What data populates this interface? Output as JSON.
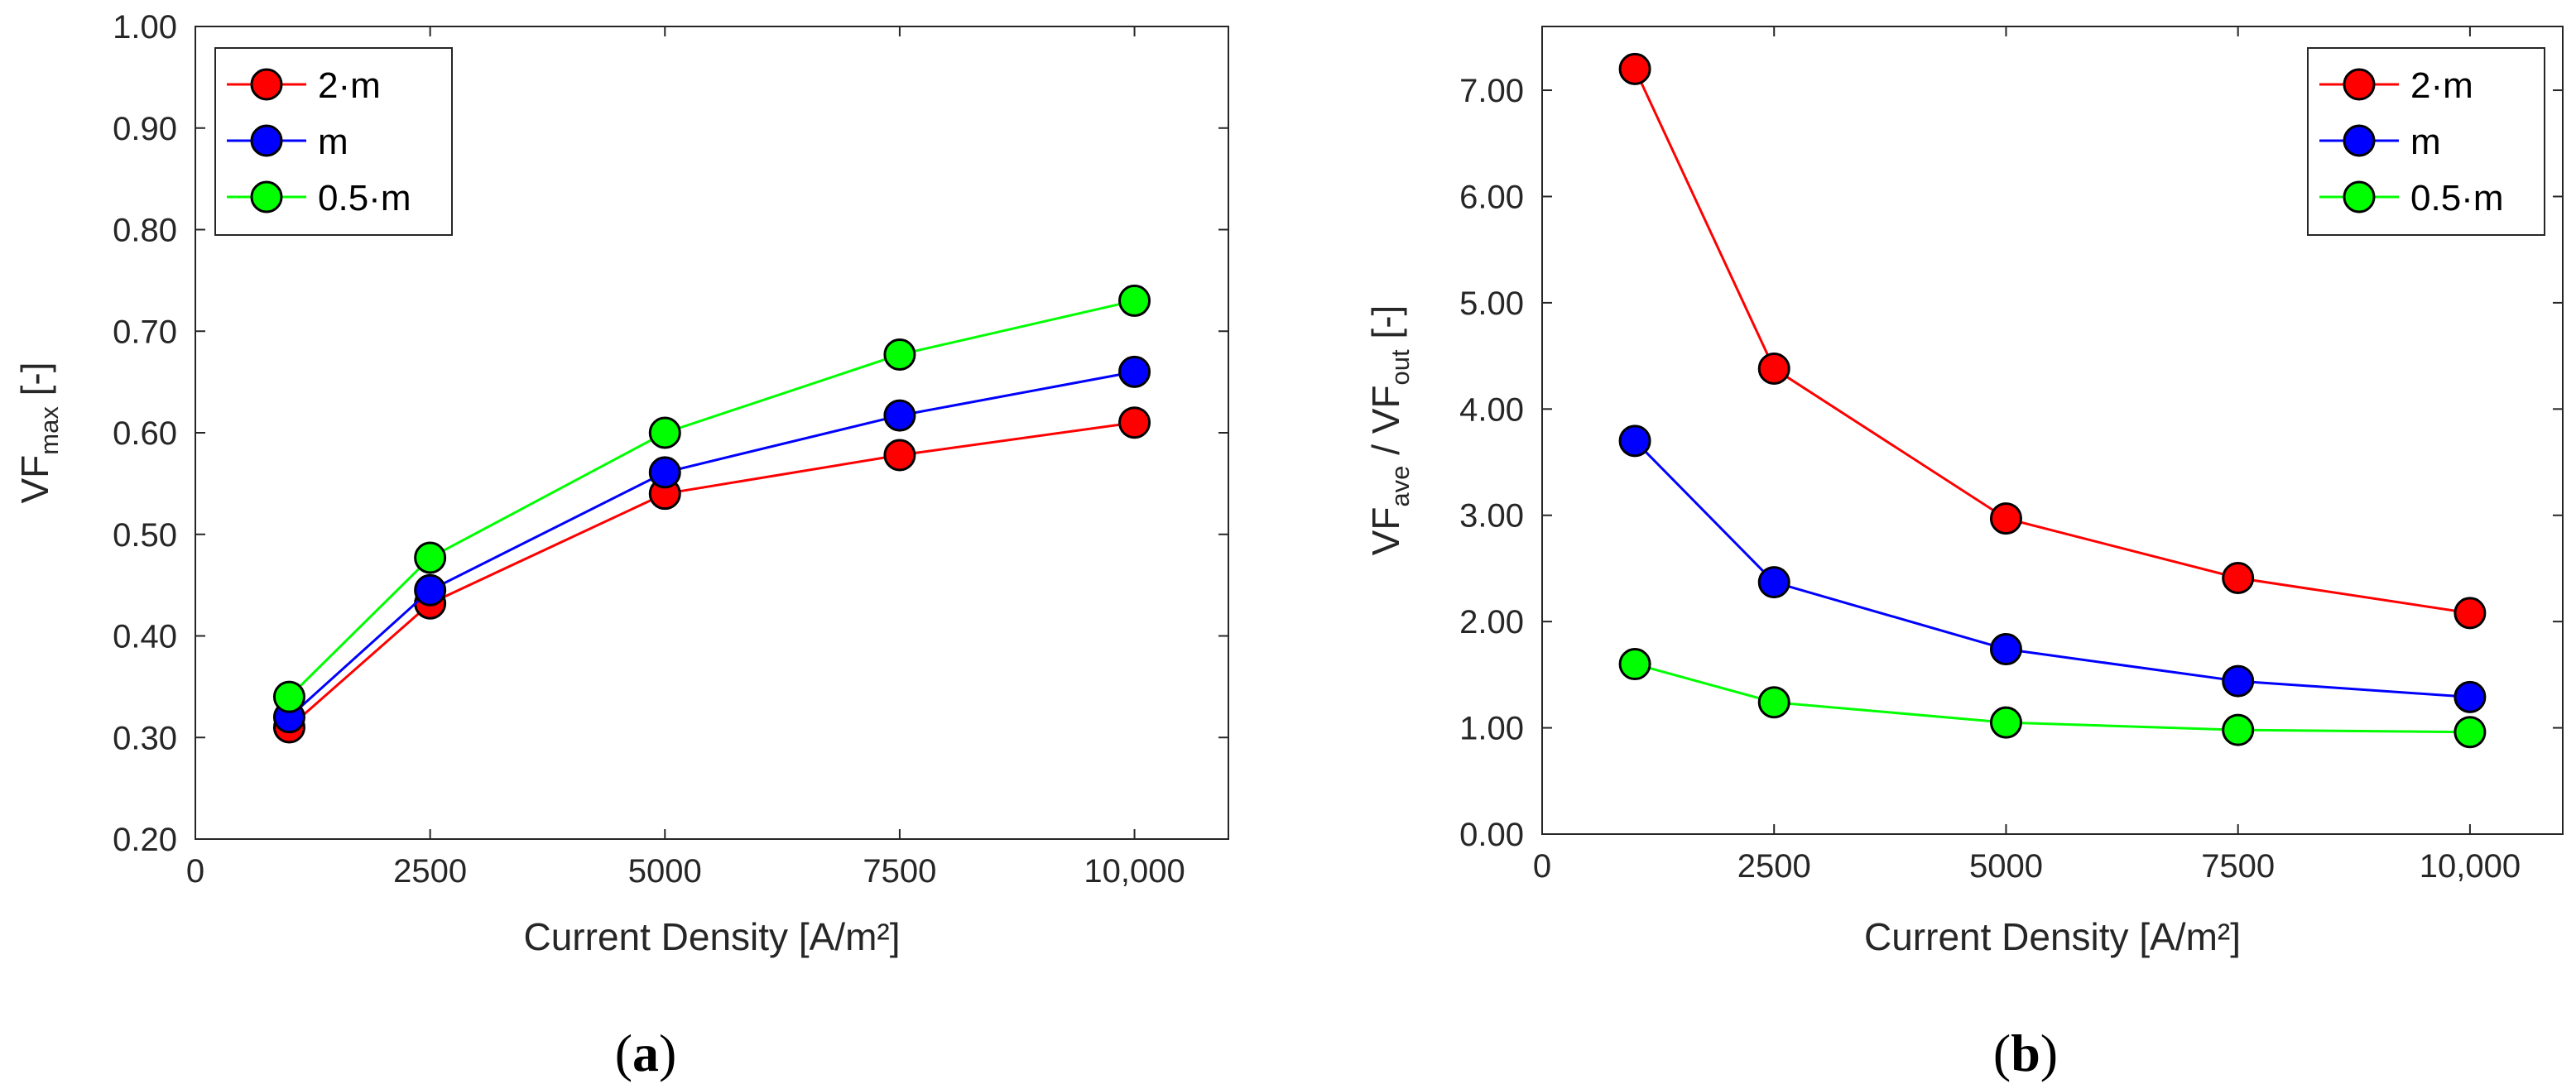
{
  "chart_data": [
    {
      "type": "line",
      "panel": "(a)",
      "caption_open": "(",
      "caption_letter": "a",
      "caption_close": ")",
      "x": [
        1000,
        2500,
        5000,
        7500,
        10000
      ],
      "xlim": [
        0,
        11000
      ],
      "xticks": [
        0,
        2500,
        5000,
        7500,
        10000
      ],
      "xtick_labels": [
        "0",
        "2500",
        "5000",
        "7500",
        "10,000"
      ],
      "xlabel": "Current Density [A/m²]",
      "ylabel_main": "VF",
      "ylabel_sub": "max",
      "ylabel_suffix": " [-]",
      "ylim": [
        0.2,
        1.0
      ],
      "yticks": [
        0.2,
        0.3,
        0.4,
        0.5,
        0.6,
        0.7,
        0.8,
        0.9,
        1.0
      ],
      "ytick_labels": [
        "0.20",
        "0.30",
        "0.40",
        "0.50",
        "0.60",
        "0.70",
        "0.80",
        "0.90",
        "1.00"
      ],
      "legend_position": "top-left",
      "series": [
        {
          "name": "2·m",
          "color": "#ff0000",
          "values": [
            0.31,
            0.432,
            0.54,
            0.578,
            0.61
          ]
        },
        {
          "name": "m",
          "color": "#0000ff",
          "values": [
            0.32,
            0.445,
            0.561,
            0.617,
            0.66
          ]
        },
        {
          "name": "0.5·m",
          "color": "#00ff00",
          "values": [
            0.34,
            0.477,
            0.6,
            0.677,
            0.73
          ]
        }
      ]
    },
    {
      "type": "line",
      "panel": "(b)",
      "caption_open": "(",
      "caption_letter": "b",
      "caption_close": ")",
      "x": [
        1000,
        2500,
        5000,
        7500,
        10000
      ],
      "xlim": [
        0,
        11000
      ],
      "xticks": [
        0,
        2500,
        5000,
        7500,
        10000
      ],
      "xtick_labels": [
        "0",
        "2500",
        "5000",
        "7500",
        "10,000"
      ],
      "xlabel": "Current Density [A/m²]",
      "ylabel_main": "VF",
      "ylabel_sub": "ave",
      "ylabel_mid": " / VF",
      "ylabel_sub2": "out",
      "ylabel_suffix": " [-]",
      "ylim": [
        0.0,
        7.6
      ],
      "yticks": [
        0,
        1,
        2,
        3,
        4,
        5,
        6,
        7
      ],
      "ytick_labels": [
        "0.00",
        "1.00",
        "2.00",
        "3.00",
        "4.00",
        "5.00",
        "6.00",
        "7.00"
      ],
      "legend_position": "top-right",
      "series": [
        {
          "name": "2·m",
          "color": "#ff0000",
          "values": [
            7.2,
            4.38,
            2.97,
            2.41,
            2.08
          ]
        },
        {
          "name": "m",
          "color": "#0000ff",
          "values": [
            3.7,
            2.37,
            1.74,
            1.44,
            1.29
          ]
        },
        {
          "name": "0.5·m",
          "color": "#00ff00",
          "values": [
            1.6,
            1.24,
            1.05,
            0.98,
            0.96
          ]
        }
      ]
    }
  ]
}
